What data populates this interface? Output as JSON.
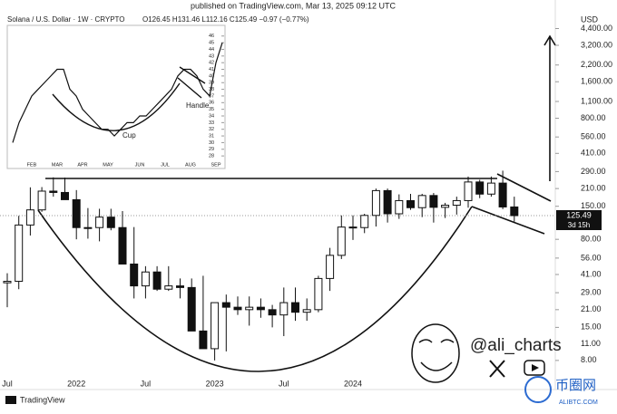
{
  "header": {
    "published": "published on TradingView.com, Mar 13, 2025 09:12 UTC",
    "symbol": "Solana / U.S. Dollar · 1W · CRYPTO",
    "ohlc": "O126.45 H131.46 L112.16 C125.49 −0.97 (−0.77%)",
    "currency": "USD",
    "countdown": "3d 15h"
  },
  "branding": {
    "author": "@ali_charts",
    "platform": "TradingView",
    "watermark": "币圈网",
    "watermark_url": "ALIBTC.COM"
  },
  "chart_data": [
    {
      "type": "candlestick",
      "log_scale": true,
      "up_color": "#ffffff",
      "down_color": "#111111",
      "edge_color": "#111111",
      "categories": [
        "Jul",
        null,
        null,
        null,
        null,
        null,
        "2022",
        null,
        null,
        null,
        null,
        null,
        "Jul",
        null,
        null,
        null,
        null,
        null,
        "2023",
        null,
        null,
        null,
        null,
        null,
        "Jul",
        null,
        null,
        null,
        null,
        null,
        "2024",
        null,
        null,
        null,
        null,
        null,
        null,
        null,
        null,
        null,
        null,
        null,
        null,
        null,
        null
      ],
      "open": [
        35,
        36,
        105,
        140,
        200,
        195,
        170,
        100,
        100,
        122,
        100,
        50,
        33,
        43,
        31,
        33,
        32,
        14,
        10,
        24,
        22,
        21,
        22,
        21,
        19,
        24,
        20,
        21,
        38,
        59,
        101,
        100,
        126,
        202,
        130,
        167,
        146,
        184,
        147,
        153,
        167,
        238,
        189,
        233,
        148
      ],
      "high": [
        42,
        125,
        215,
        216,
        260,
        259,
        204,
        145,
        143,
        143,
        137,
        101,
        48,
        48,
        48,
        38,
        38,
        40,
        16,
        28,
        27,
        27,
        26,
        23,
        32,
        32,
        26,
        40,
        68,
        126,
        126,
        130,
        210,
        210,
        188,
        190,
        190,
        193,
        160,
        180,
        264,
        248,
        264,
        295,
        180
      ],
      "low": [
        22,
        31,
        86,
        135,
        180,
        175,
        80,
        81,
        77,
        95,
        75,
        26,
        26,
        30,
        30,
        26,
        27,
        12,
        8,
        9.5,
        19,
        15.5,
        18,
        15,
        12.7,
        17,
        17,
        20,
        30,
        55,
        79,
        90,
        102,
        110,
        118,
        140,
        122,
        110,
        120,
        128,
        146,
        175,
        180,
        142,
        112
      ],
      "close": [
        36,
        105,
        140,
        200,
        195,
        170,
        100,
        100,
        122,
        100,
        50,
        33,
        43,
        31,
        33,
        32,
        14,
        10,
        24,
        22,
        21,
        22,
        21,
        19,
        24,
        20,
        21,
        38,
        59,
        101,
        100,
        126,
        202,
        130,
        167,
        146,
        184,
        147,
        153,
        167,
        238,
        189,
        233,
        148,
        125.49
      ],
      "ylim": [
        4.6,
        7570
      ],
      "yticks": [
        {
          "value": 4400,
          "label": "4,400.00"
        },
        {
          "value": 3200,
          "label": "3,200.00"
        },
        {
          "value": 2200,
          "label": "2,200.00"
        },
        {
          "value": 1600,
          "label": "1,600.00"
        },
        {
          "value": 1100,
          "label": "1,100.00"
        },
        {
          "value": 800,
          "label": "800.00"
        },
        {
          "value": 560,
          "label": "560.00"
        },
        {
          "value": 410,
          "label": "410.00"
        },
        {
          "value": 290,
          "label": "290.00"
        },
        {
          "value": 210,
          "label": "210.00"
        },
        {
          "value": 150,
          "label": "150.00"
        },
        {
          "value": 80,
          "label": "80.00"
        },
        {
          "value": 56,
          "label": "56.00"
        },
        {
          "value": 41,
          "label": "41.00"
        },
        {
          "value": 29,
          "label": "29.00"
        },
        {
          "value": 21,
          "label": "21.00"
        },
        {
          "value": 15,
          "label": "15.00"
        },
        {
          "value": 11,
          "label": "11.00"
        },
        {
          "value": 8,
          "label": "8.00"
        }
      ]
    },
    {
      "type": "line",
      "color": "#111111",
      "categories": [
        null,
        null,
        null,
        "FEB",
        null,
        null,
        null,
        "MAR",
        null,
        null,
        null,
        "APR",
        null,
        null,
        null,
        "MAY",
        null,
        null,
        null,
        null,
        "JUN",
        null,
        null,
        null,
        "JUL",
        null,
        null,
        null,
        "AUG",
        null,
        null,
        null,
        "SEP",
        null
      ],
      "values": [
        30,
        33,
        35,
        37,
        38,
        39,
        40,
        41,
        41,
        38,
        37,
        35,
        34,
        33,
        32,
        32,
        31,
        32,
        33,
        33,
        34,
        34,
        35,
        36,
        37,
        38,
        40,
        41,
        41,
        40,
        38,
        37,
        42,
        45
      ],
      "ylim": [
        27.2,
        47.6
      ],
      "yticks": [
        28,
        29,
        30,
        31,
        32,
        33,
        34,
        35,
        36,
        37,
        38,
        39,
        40,
        41,
        42,
        43,
        44,
        45,
        46
      ],
      "annotations": [
        "Cup",
        "Handle"
      ]
    }
  ]
}
